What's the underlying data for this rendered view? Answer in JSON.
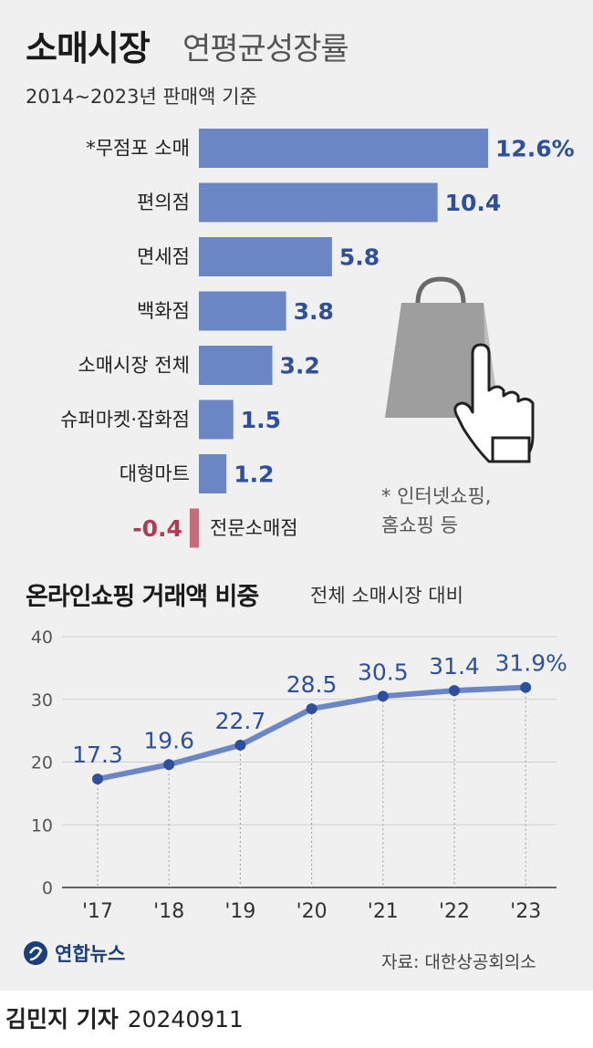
{
  "header": {
    "title_main": "소매시장",
    "title_sub": "연평균성장률",
    "subtitle": "2014~2023년 판매액 기준"
  },
  "colors": {
    "bar_positive": "#6b86c5",
    "bar_negative": "#c96b78",
    "value_positive": "#2e4f9c",
    "value_negative": "#b23a55",
    "line": "#6b86c5",
    "marker": "#2e4f9c",
    "line_value": "#2e4f9c"
  },
  "icon": {
    "name": "shopping-bag-hand-cursor-icon"
  },
  "footnote": {
    "line1": "* 인터넷쇼핑,",
    "line2": "홈쇼핑 등"
  },
  "section2": {
    "title": "온라인쇼핑 거래액 비중",
    "subtitle": "전체 소매시장 대비"
  },
  "footer": {
    "logo_text": "연합뉴스",
    "source": "자료: 대한상공회의소",
    "byline_name": "김민지 기자",
    "byline_date": "20240911"
  },
  "chart_data": [
    {
      "type": "bar",
      "orientation": "horizontal",
      "title": "",
      "categories": [
        "*무점포 소매",
        "편의점",
        "면세점",
        "백화점",
        "소매시장 전체",
        "슈퍼마켓·잡화점",
        "대형마트",
        "전문소매점"
      ],
      "values": [
        12.6,
        10.4,
        5.8,
        3.8,
        3.2,
        1.5,
        1.2,
        -0.4
      ],
      "value_labels": [
        "12.6%",
        "10.4",
        "5.8",
        "3.8",
        "3.2",
        "1.5",
        "1.2",
        "-0.4"
      ],
      "unit": "%",
      "xlim": [
        -0.4,
        12.6
      ]
    },
    {
      "type": "line",
      "categories": [
        "'17",
        "'18",
        "'19",
        "'20",
        "'21",
        "'22",
        "'23"
      ],
      "values": [
        17.3,
        19.6,
        22.7,
        28.5,
        30.5,
        31.4,
        31.9
      ],
      "value_labels": [
        "17.3",
        "19.6",
        "22.7",
        "28.5",
        "30.5",
        "31.4",
        "31.9%"
      ],
      "unit": "%",
      "ylim": [
        0,
        40
      ],
      "yticks": [
        "0",
        "10",
        "20",
        "30",
        "40"
      ],
      "grid": "vertical-dotted"
    }
  ]
}
